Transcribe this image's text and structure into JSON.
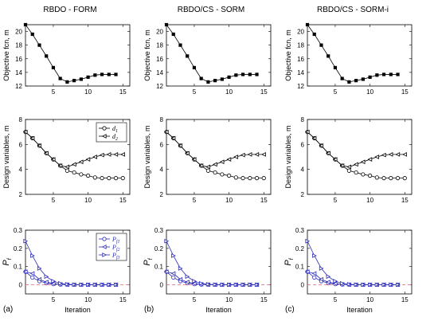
{
  "figure": {
    "columns": [
      "RBDO - FORM",
      "RBDO/CS - SORM",
      "RBDO/CS - SORM-i"
    ],
    "panel_labels": [
      "(a)",
      "(b)",
      "(c)"
    ],
    "xlabel": "Iteration",
    "row_ylabels": [
      "Objective fcn, m",
      "Design variables, m",
      "P"
    ],
    "row_ylabel_sub": "f",
    "colors": {
      "black": "#000000",
      "blue": "#2b2bb8",
      "target": "#e87a8c"
    }
  },
  "chart_data": [
    {
      "type": "line",
      "row": "objective",
      "xlim": [
        1,
        16
      ],
      "ylim": [
        12,
        21
      ],
      "xticks": [
        5,
        10,
        15
      ],
      "yticks": [
        12,
        14,
        16,
        18,
        20
      ],
      "series": [
        {
          "marker": "square",
          "color": "#000000",
          "x": [
            1,
            2,
            3,
            4,
            5,
            6,
            7,
            8,
            9,
            10,
            11,
            12,
            13,
            14
          ],
          "values": [
            21.0,
            19.6,
            18.0,
            16.4,
            14.7,
            13.1,
            12.6,
            12.8,
            13.0,
            13.3,
            13.6,
            13.7,
            13.7,
            13.7
          ]
        }
      ]
    },
    {
      "type": "line",
      "row": "design",
      "xlim": [
        1,
        16
      ],
      "ylim": [
        2,
        8
      ],
      "xticks": [
        5,
        10,
        15
      ],
      "yticks": [
        2,
        4,
        6,
        8
      ],
      "legend": {
        "placement": "top-right",
        "entries": [
          {
            "base": "d",
            "sub": "1"
          },
          {
            "base": "d",
            "sub": "2"
          }
        ]
      },
      "series": [
        {
          "name": "d1",
          "marker": "circle",
          "color": "#000000",
          "x": [
            1,
            2,
            3,
            4,
            5,
            6,
            7,
            8,
            9,
            10,
            11,
            12,
            13,
            14,
            15
          ],
          "values": [
            7.0,
            6.5,
            5.9,
            5.3,
            4.8,
            4.3,
            3.9,
            3.75,
            3.6,
            3.5,
            3.35,
            3.3,
            3.3,
            3.3,
            3.3
          ]
        },
        {
          "name": "d2",
          "marker": "triangle-left",
          "color": "#000000",
          "x": [
            1,
            2,
            3,
            4,
            5,
            6,
            7,
            8,
            9,
            10,
            11,
            12,
            13,
            14,
            15
          ],
          "values": [
            7.0,
            6.5,
            5.9,
            5.3,
            4.8,
            4.3,
            4.2,
            4.4,
            4.6,
            4.8,
            5.0,
            5.15,
            5.2,
            5.2,
            5.2
          ]
        }
      ]
    },
    {
      "type": "line",
      "row": "probability",
      "xlim": [
        1,
        16
      ],
      "ylim": [
        -0.05,
        0.3
      ],
      "xticks": [
        5,
        10,
        15
      ],
      "yticks": [
        0,
        0.1,
        0.2,
        0.3
      ],
      "target_line": 0,
      "legend": {
        "placement": "top-right",
        "entries": [
          {
            "base": "P",
            "sub": "f1"
          },
          {
            "base": "P",
            "sub": "f2"
          },
          {
            "base": "P",
            "sub": "f3"
          }
        ]
      },
      "series": [
        {
          "name": "Pf1",
          "marker": "circle",
          "color": "#2b2bb8",
          "x": [
            1,
            2,
            3,
            4,
            5,
            6,
            7,
            8,
            9,
            10,
            11,
            12,
            13,
            14
          ],
          "values": [
            0.072,
            0.04,
            0.02,
            0.01,
            0.004,
            0.002,
            0.001,
            0.0005,
            0.0005,
            0.0005,
            0.0005,
            0.0005,
            0.0005,
            0.0005
          ]
        },
        {
          "name": "Pf2",
          "marker": "triangle-left",
          "color": "#2b2bb8",
          "x": [
            1,
            2,
            3,
            4,
            5,
            6,
            7,
            8,
            9,
            10,
            11,
            12,
            13,
            14
          ],
          "values": [
            0.072,
            0.062,
            0.03,
            0.015,
            0.007,
            0.003,
            0.001,
            0.0005,
            0.0005,
            0.0005,
            0.0005,
            0.0005,
            0.0005,
            0.0005
          ]
        },
        {
          "name": "Pf3",
          "marker": "triangle-right",
          "color": "#2b2bb8",
          "x": [
            1,
            2,
            3,
            4,
            5,
            6,
            7,
            8,
            9,
            10,
            11,
            12,
            13,
            14
          ],
          "values": [
            0.24,
            0.16,
            0.09,
            0.045,
            0.02,
            0.008,
            0.003,
            0.001,
            0.0005,
            0.0005,
            0.0005,
            0.0005,
            0.0005,
            0.0005
          ]
        }
      ]
    }
  ]
}
